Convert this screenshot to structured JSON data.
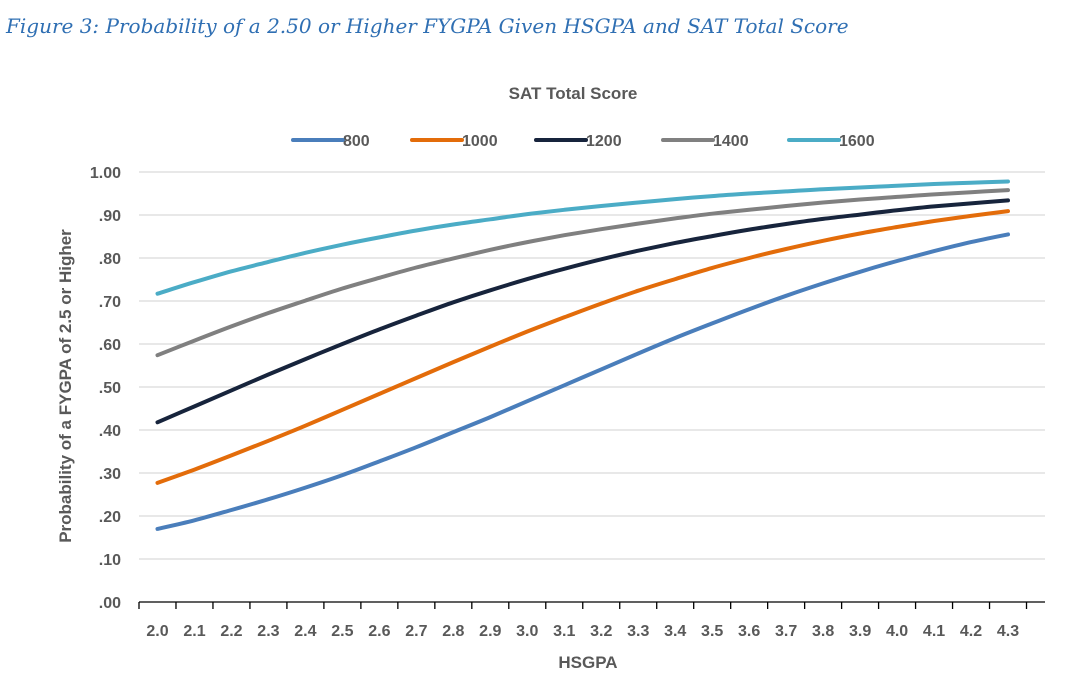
{
  "figure_title": "Figure 3: Probability of a 2.50 or Higher FYGPA Given HSGPA and SAT Total Score",
  "colors": {
    "title": "#2f6fb3",
    "axis_text": "#595959",
    "gridline": "#d9d9d9",
    "axis_line": "#000000"
  },
  "chart_data": {
    "type": "line",
    "title": "SAT Total Score",
    "legend_title": "SAT Total Score",
    "legend_position": "top",
    "xlabel": "HSGPA",
    "ylabel": "Probability of a FYGPA of 2.5 or Higher",
    "xlim": [
      1.95,
      4.4
    ],
    "ylim": [
      0,
      1
    ],
    "grid": true,
    "x_ticks": [
      "2.0",
      "2.1",
      "2.2",
      "2.3",
      "2.4",
      "2.5",
      "2.6",
      "2.7",
      "2.8",
      "2.9",
      "3.0",
      "3.1",
      "3.2",
      "3.3",
      "3.4",
      "3.5",
      "3.6",
      "3.7",
      "3.8",
      "3.9",
      "4.0",
      "4.1",
      "4.2",
      "4.3"
    ],
    "y_ticks": [
      ".00",
      ".10",
      ".20",
      ".30",
      ".40",
      ".50",
      ".60",
      ".70",
      ".80",
      ".90",
      "1.00"
    ],
    "x": [
      2.0,
      2.1,
      2.2,
      2.3,
      2.4,
      2.5,
      2.6,
      2.7,
      2.8,
      2.9,
      3.0,
      3.1,
      3.2,
      3.3,
      3.4,
      3.5,
      3.6,
      3.7,
      3.8,
      3.9,
      4.0,
      4.1,
      4.2,
      4.3
    ],
    "series": [
      {
        "name": "800",
        "color": "#4a7ebb",
        "values": [
          0.17,
          0.19,
          0.214,
          0.239,
          0.266,
          0.295,
          0.327,
          0.36,
          0.395,
          0.43,
          0.467,
          0.504,
          0.541,
          0.578,
          0.614,
          0.648,
          0.681,
          0.712,
          0.741,
          0.768,
          0.793,
          0.816,
          0.837,
          0.855
        ]
      },
      {
        "name": "1000",
        "color": "#e36c0a",
        "values": [
          0.277,
          0.308,
          0.341,
          0.375,
          0.41,
          0.447,
          0.484,
          0.521,
          0.558,
          0.594,
          0.629,
          0.662,
          0.694,
          0.724,
          0.751,
          0.777,
          0.8,
          0.821,
          0.84,
          0.857,
          0.872,
          0.886,
          0.898,
          0.909
        ]
      },
      {
        "name": "1200",
        "color": "#17243c",
        "values": [
          0.418,
          0.455,
          0.492,
          0.529,
          0.565,
          0.6,
          0.634,
          0.666,
          0.697,
          0.725,
          0.751,
          0.775,
          0.797,
          0.817,
          0.835,
          0.851,
          0.866,
          0.879,
          0.891,
          0.901,
          0.911,
          0.92,
          0.927,
          0.934
        ]
      },
      {
        "name": "1400",
        "color": "#808080",
        "values": [
          0.574,
          0.608,
          0.641,
          0.672,
          0.701,
          0.729,
          0.754,
          0.778,
          0.799,
          0.819,
          0.837,
          0.853,
          0.867,
          0.88,
          0.892,
          0.903,
          0.912,
          0.921,
          0.929,
          0.936,
          0.942,
          0.948,
          0.953,
          0.958
        ]
      },
      {
        "name": "1600",
        "color": "#4bacc6",
        "values": [
          0.717,
          0.744,
          0.769,
          0.791,
          0.812,
          0.831,
          0.848,
          0.864,
          0.878,
          0.89,
          0.902,
          0.912,
          0.921,
          0.929,
          0.937,
          0.944,
          0.95,
          0.955,
          0.96,
          0.964,
          0.968,
          0.972,
          0.975,
          0.978
        ]
      }
    ]
  }
}
